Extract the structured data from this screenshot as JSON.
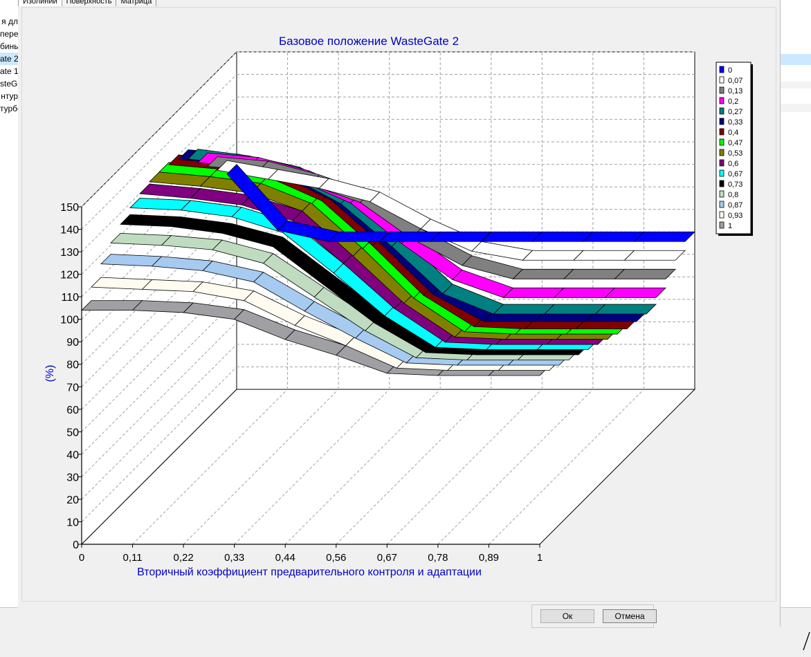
{
  "tabs": [
    {
      "label": "Изолинии",
      "active": true
    },
    {
      "label": "Поверхность",
      "active": false
    },
    {
      "label": "Матрица",
      "active": false
    }
  ],
  "background_list": [
    "я дл",
    "пере",
    "бины",
    "ate 2",
    "ate 1",
    "steGa",
    "нтур",
    "турбо"
  ],
  "buttons": {
    "ok": "Ок",
    "cancel": "Отмена"
  },
  "chart_data": {
    "type": "surface3d",
    "title": "Базовое положение WasteGate 2",
    "xlabel": "Вторичный коэффициент предварительного контроля и адаптации",
    "ylabel": "(%)",
    "x_ticks": [
      "0",
      "0,11",
      "0,22",
      "0,33",
      "0,44",
      "0,56",
      "0,67",
      "0,78",
      "0,89",
      "1"
    ],
    "y_ticks": [
      "0",
      "10",
      "20",
      "30",
      "40",
      "50",
      "60",
      "70",
      "80",
      "90",
      "100",
      "110",
      "120",
      "130",
      "140",
      "150"
    ],
    "ylim": [
      0,
      150
    ],
    "legend_position": "right",
    "series": [
      {
        "name": "0",
        "color": "#0000ff",
        "values": [
          100,
          75,
          70,
          70,
          70,
          70,
          70,
          70,
          70,
          70
        ]
      },
      {
        "name": "0,07",
        "color": "#ffffff",
        "values": [
          106,
          102,
          98,
          92,
          80,
          70,
          66,
          66,
          66,
          66
        ]
      },
      {
        "name": "0,13",
        "color": "#808080",
        "values": [
          112,
          110,
          104,
          96,
          80,
          68,
          62,
          62,
          62,
          62
        ]
      },
      {
        "name": "0,2",
        "color": "#ff00ff",
        "values": [
          118,
          116,
          110,
          100,
          82,
          66,
          58,
          58,
          58,
          58
        ]
      },
      {
        "name": "0,27",
        "color": "#008080",
        "values": [
          124,
          121,
          116,
          104,
          85,
          64,
          55,
          55,
          55,
          55
        ]
      },
      {
        "name": "0,33",
        "color": "#000080",
        "values": [
          128,
          126,
          121,
          110,
          90,
          68,
          56,
          56,
          56,
          56
        ]
      },
      {
        "name": "0,4",
        "color": "#800000",
        "values": [
          130,
          128,
          124,
          114,
          94,
          72,
          58,
          57,
          57,
          57
        ]
      },
      {
        "name": "0,47",
        "color": "#00ff00",
        "values": [
          131,
          129,
          126,
          117,
          97,
          75,
          60,
          59,
          59,
          59
        ]
      },
      {
        "name": "0,53",
        "color": "#808000",
        "values": [
          131,
          129,
          126,
          118,
          98,
          77,
          62,
          61,
          61,
          61
        ]
      },
      {
        "name": "0,6",
        "color": "#800080",
        "values": [
          130,
          128,
          125,
          118,
          99,
          79,
          64,
          63,
          63,
          63
        ]
      },
      {
        "name": "0,67",
        "color": "#00ffff",
        "values": [
          128,
          127,
          124,
          117,
          99,
          80,
          66,
          65,
          65,
          65
        ]
      },
      {
        "name": "0,73",
        "color": "#000000",
        "values": [
          125,
          124,
          121,
          115,
          98,
          81,
          68,
          67,
          67,
          67
        ]
      },
      {
        "name": "0,8",
        "color": "#c0dcc0",
        "values": [
          121,
          120,
          118,
          112,
          97,
          82,
          70,
          69,
          69,
          69
        ]
      },
      {
        "name": "0,87",
        "color": "#a6caf0",
        "values": [
          116,
          115,
          113,
          108,
          95,
          83,
          72,
          71,
          71,
          71
        ]
      },
      {
        "name": "0,93",
        "color": "#fffbf0",
        "values": [
          110,
          109,
          108,
          104,
          93,
          84,
          74,
          73,
          73,
          73
        ]
      },
      {
        "name": "1",
        "color": "#a0a0a4",
        "values": [
          104,
          104,
          103,
          100,
          91,
          84,
          76,
          75,
          75,
          75
        ]
      }
    ]
  }
}
